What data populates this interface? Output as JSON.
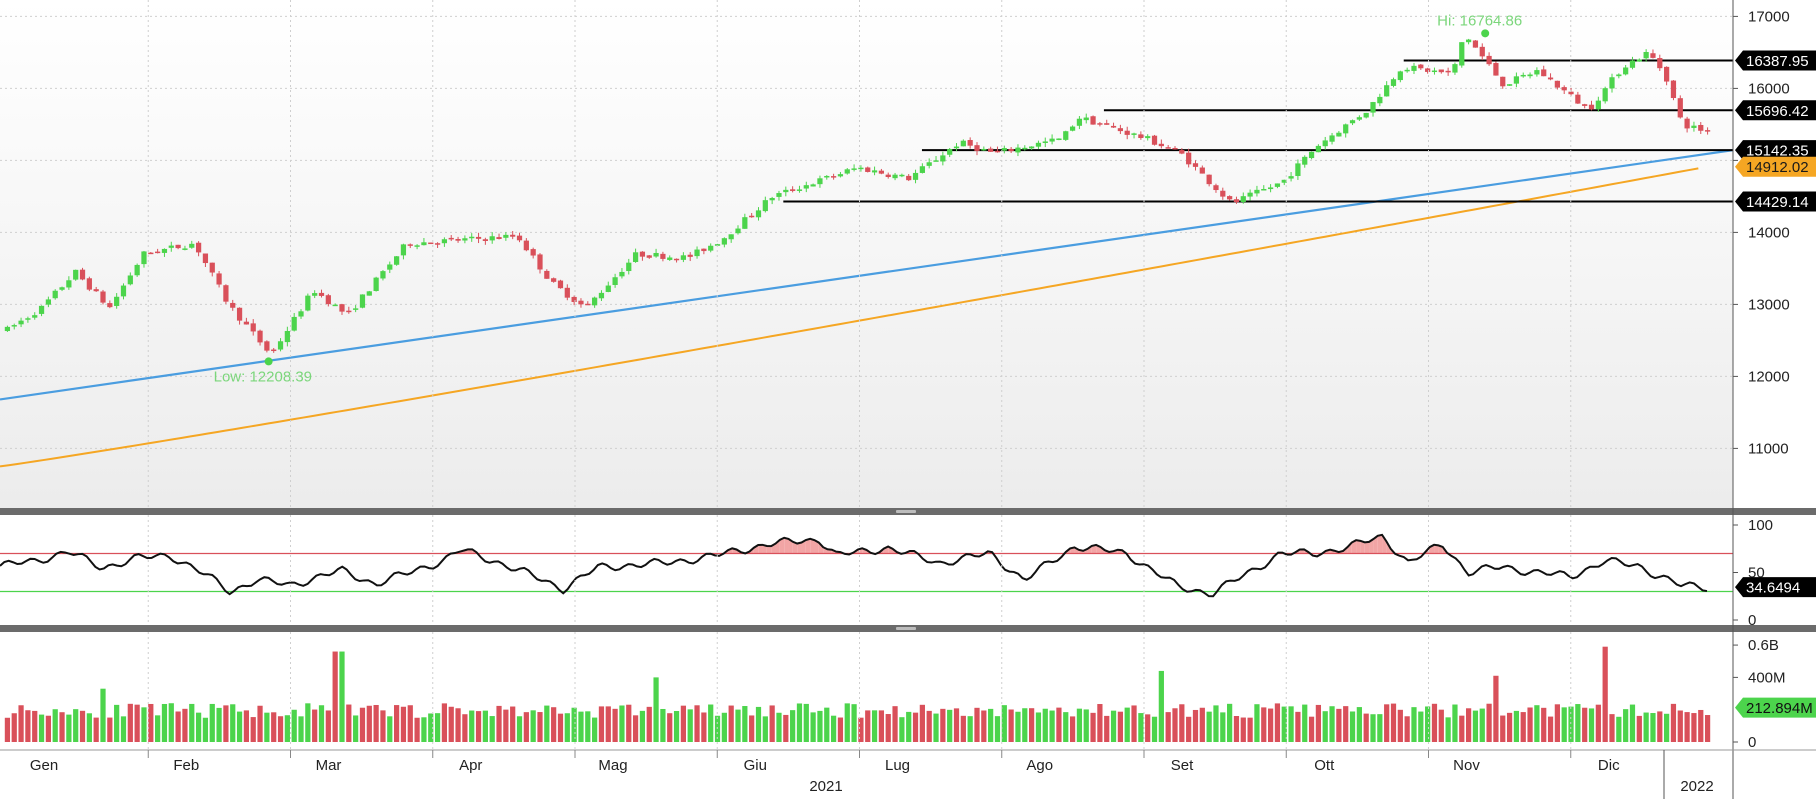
{
  "chart_data": [
    {
      "type": "candlestick",
      "panel": "price",
      "ylim": [
        10200,
        17200
      ],
      "y_ticks": [
        "11000",
        "12000",
        "13000",
        "14000",
        "15000",
        "16000",
        "17000"
      ],
      "y_tick_values": [
        11000,
        12000,
        13000,
        14000,
        15000,
        16000,
        17000
      ],
      "grid": true,
      "colors": {
        "up": "#4cd44c",
        "down": "#d9505a",
        "trendline": "#4a9de0",
        "ma": "#f5a623"
      },
      "annotations": {
        "high": "Hi: 16764.86",
        "low": "Low: 12208.39",
        "high_value": 16764.86,
        "low_value": 12208.39
      },
      "hi_date_fraction": 0.857,
      "low_date_fraction": 0.155,
      "price_path": [
        [
          0.0,
          12650
        ],
        [
          0.02,
          12950
        ],
        [
          0.04,
          13450
        ],
        [
          0.06,
          12950
        ],
        [
          0.08,
          13700
        ],
        [
          0.11,
          13850
        ],
        [
          0.13,
          13000
        ],
        [
          0.155,
          12300
        ],
        [
          0.18,
          13200
        ],
        [
          0.2,
          12850
        ],
        [
          0.235,
          13850
        ],
        [
          0.27,
          13900
        ],
        [
          0.3,
          13950
        ],
        [
          0.32,
          13300
        ],
        [
          0.34,
          12950
        ],
        [
          0.37,
          13700
        ],
        [
          0.4,
          13650
        ],
        [
          0.42,
          13900
        ],
        [
          0.45,
          14500
        ],
        [
          0.5,
          14900
        ],
        [
          0.53,
          14750
        ],
        [
          0.56,
          15250
        ],
        [
          0.58,
          15100
        ],
        [
          0.62,
          15300
        ],
        [
          0.63,
          15600
        ],
        [
          0.67,
          15300
        ],
        [
          0.69,
          15100
        ],
        [
          0.72,
          14400
        ],
        [
          0.75,
          14700
        ],
        [
          0.77,
          15200
        ],
        [
          0.8,
          15700
        ],
        [
          0.82,
          16300
        ],
        [
          0.85,
          16200
        ],
        [
          0.857,
          16764
        ],
        [
          0.88,
          16050
        ],
        [
          0.9,
          16250
        ],
        [
          0.93,
          15700
        ],
        [
          0.95,
          16300
        ],
        [
          0.965,
          16500
        ],
        [
          0.975,
          16200
        ],
        [
          0.985,
          15500
        ],
        [
          1.0,
          15400
        ]
      ],
      "trendline": {
        "start": 11680,
        "end": 15142.35
      },
      "moving_average": {
        "start": 10750,
        "end": 14912.02
      },
      "horizontal_levels": [
        {
          "label": "16387.95",
          "value": 16387.95,
          "from_fraction": 0.81
        },
        {
          "label": "15696.42",
          "value": 15696.42,
          "from_fraction": 0.637
        },
        {
          "label": "15142.35",
          "value": 15142.35,
          "from_fraction": 0.532
        },
        {
          "label": "14429.14",
          "value": 14429.14,
          "from_fraction": 0.452
        }
      ],
      "last_price_tags": [
        {
          "label": "15696.42",
          "value": 15696.42,
          "kind": "level",
          "bg": "#000000",
          "fg": "#ffffff"
        },
        {
          "label": "15142.35",
          "value": 15142.35,
          "kind": "level",
          "bg": "#000000",
          "fg": "#ffffff"
        },
        {
          "label": "14912.02",
          "value": 14912.02,
          "kind": "ma",
          "bg": "#f5a623",
          "fg": "#1a1a1a"
        },
        {
          "label": "14429.14",
          "value": 14429.14,
          "kind": "level",
          "bg": "#000000",
          "fg": "#ffffff"
        }
      ]
    },
    {
      "type": "line",
      "panel": "rsi",
      "ylim": [
        0,
        100
      ],
      "y_ticks": [
        "100",
        "50",
        "0"
      ],
      "y_tick_values": [
        100,
        50,
        0
      ],
      "upper_band": 70,
      "lower_band": 30,
      "last_value": 34.6494,
      "last_label": "34.6494",
      "path": [
        [
          0.0,
          57
        ],
        [
          0.02,
          62
        ],
        [
          0.04,
          72
        ],
        [
          0.06,
          55
        ],
        [
          0.08,
          65
        ],
        [
          0.1,
          68
        ],
        [
          0.12,
          48
        ],
        [
          0.135,
          30
        ],
        [
          0.15,
          42
        ],
        [
          0.17,
          37
        ],
        [
          0.2,
          52
        ],
        [
          0.22,
          38
        ],
        [
          0.24,
          50
        ],
        [
          0.26,
          63
        ],
        [
          0.27,
          74
        ],
        [
          0.29,
          62
        ],
        [
          0.31,
          48
        ],
        [
          0.33,
          33
        ],
        [
          0.35,
          55
        ],
        [
          0.37,
          58
        ],
        [
          0.39,
          60
        ],
        [
          0.42,
          68
        ],
        [
          0.45,
          80
        ],
        [
          0.48,
          85
        ],
        [
          0.49,
          68
        ],
        [
          0.52,
          76
        ],
        [
          0.55,
          60
        ],
        [
          0.58,
          70
        ],
        [
          0.6,
          42
        ],
        [
          0.63,
          78
        ],
        [
          0.66,
          70
        ],
        [
          0.69,
          35
        ],
        [
          0.71,
          28
        ],
        [
          0.73,
          48
        ],
        [
          0.75,
          70
        ],
        [
          0.77,
          70
        ],
        [
          0.79,
          77
        ],
        [
          0.81,
          88
        ],
        [
          0.825,
          60
        ],
        [
          0.845,
          80
        ],
        [
          0.86,
          50
        ],
        [
          0.88,
          56
        ],
        [
          0.9,
          50
        ],
        [
          0.92,
          46
        ],
        [
          0.94,
          62
        ],
        [
          0.96,
          57
        ],
        [
          0.97,
          48
        ],
        [
          0.985,
          36
        ],
        [
          1.0,
          34.6
        ]
      ]
    },
    {
      "type": "bar",
      "panel": "volume",
      "ylim": [
        0,
        650000000
      ],
      "y_ticks": [
        "0.6B",
        "400M",
        "0"
      ],
      "y_tick_values": [
        600000000,
        400000000,
        0
      ],
      "last_label": "212.894M",
      "last_value": 212894000,
      "spikes": [
        {
          "pos": 0.055,
          "value": 330000000
        },
        {
          "pos": 0.195,
          "value": 560000000
        },
        {
          "pos": 0.38,
          "value": 400000000
        },
        {
          "pos": 0.68,
          "value": 440000000
        },
        {
          "pos": 0.875,
          "value": 410000000
        },
        {
          "pos": 0.94,
          "value": 590000000
        }
      ],
      "x_ticks": [
        "Gen",
        "Feb",
        "Mar",
        "Apr",
        "Mag",
        "Giu",
        "Lug",
        "Ago",
        "Set",
        "Ott",
        "Nov",
        "Dic"
      ],
      "year_labels": [
        "2021",
        "2022"
      ]
    }
  ]
}
